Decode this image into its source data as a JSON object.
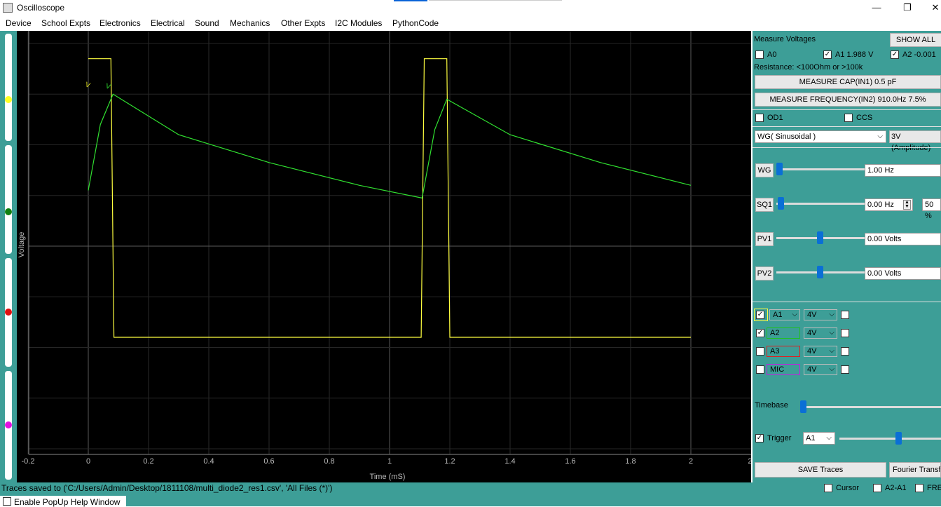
{
  "window": {
    "title": "Oscilloscope",
    "minimize": "—",
    "restore": "❐",
    "close": "✕"
  },
  "menu": [
    "Device",
    "School Expts",
    "Electronics",
    "Electrical",
    "Sound",
    "Mechanics",
    "Other Expts",
    "I2C Modules",
    "PythonCode"
  ],
  "plot": {
    "ylabel": "Voltage",
    "xlabel": "Time (mS)",
    "xticks": [
      "-0.2",
      "0",
      "0.2",
      "0.4",
      "0.6",
      "0.8",
      "1",
      "1.2",
      "1.4",
      "1.6",
      "1.8",
      "2",
      "2."
    ],
    "trigger_marks": [
      "V",
      "V"
    ]
  },
  "chart_data": {
    "type": "line",
    "xlabel": "Time (mS)",
    "ylabel": "Voltage",
    "xlim": [
      -0.2,
      2.2
    ],
    "ylim": [
      -4,
      4
    ],
    "grid": true,
    "series": [
      {
        "name": "A1",
        "color": "#ffff40",
        "points": [
          [
            0,
            3.7
          ],
          [
            0.075,
            3.7
          ],
          [
            0.085,
            -1.8
          ],
          [
            1.105,
            -1.8
          ],
          [
            1.115,
            3.7
          ],
          [
            1.19,
            3.7
          ],
          [
            1.2,
            -1.8
          ],
          [
            2.0,
            -1.8
          ]
        ]
      },
      {
        "name": "A2",
        "color": "#30e030",
        "points": [
          [
            0,
            1.1
          ],
          [
            0.04,
            2.4
          ],
          [
            0.082,
            3.0
          ],
          [
            0.3,
            2.2
          ],
          [
            0.6,
            1.65
          ],
          [
            0.9,
            1.2
          ],
          [
            1.108,
            0.95
          ],
          [
            1.15,
            2.3
          ],
          [
            1.19,
            2.9
          ],
          [
            1.4,
            2.2
          ],
          [
            1.7,
            1.65
          ],
          [
            2.0,
            1.2
          ]
        ]
      }
    ]
  },
  "status": {
    "message": "Traces saved to ('C:/Users/Admin/Desktop/1811108/multi_diode2_res1.csv', 'All Files (*)')",
    "popup_help": "Enable PopUp Help Window",
    "cursor": "Cursor",
    "a2a1": "A2-A1",
    "fre": "FRE"
  },
  "panel": {
    "measure_voltages": "Measure Voltages",
    "show_all": "SHOW ALL",
    "a0": "A0",
    "a1": "A1 1.988 V",
    "a2": "A2 -0.001",
    "resistance": "Resistance: <100Ohm  or  >100k",
    "measure_cap": "MEASURE CAP(IN1)   0.5 pF",
    "measure_freq": "MEASURE FREQUENCY(IN2) 910.0Hz  7.5%",
    "od1": "OD1",
    "ccs": "CCS",
    "wg_type": "WG( Sinusoidal )",
    "wg_amp": "3V (Amplitude)",
    "wg_label": "WG",
    "wg_value": "1.00 Hz",
    "sq1_label": "SQ1",
    "sq1_value": "0.00 Hz",
    "sq1_duty": "50 %",
    "pv1_label": "PV1",
    "pv1_value": "0.00 Volts",
    "pv2_label": "PV2",
    "pv2_value": "0.00 Volts",
    "channels": [
      {
        "name": "A1",
        "range": "4V",
        "checked": true,
        "color": "#ffff40"
      },
      {
        "name": "A2",
        "range": "4V",
        "checked": true,
        "color": "#20c020"
      },
      {
        "name": "A3",
        "range": "4V",
        "checked": false,
        "color": "#e02020"
      },
      {
        "name": "MIC",
        "range": "4V",
        "checked": false,
        "color": "#c020e0"
      }
    ],
    "timebase": "Timebase",
    "trigger": "Trigger",
    "trigger_src": "A1",
    "save_traces": "SAVE Traces",
    "fourier": "Fourier Transf",
    "check_mark": "✓",
    "dropdown_arrow": "⌵"
  }
}
